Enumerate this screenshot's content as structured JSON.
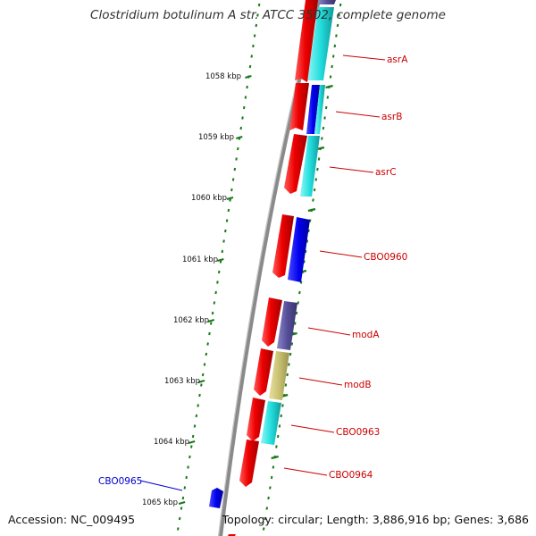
{
  "title": "Clostridium botulinum A str. ATCC 3502, complete genome",
  "accession": "Accession: NC_009495",
  "topology": "Topology: circular; Length: 3,886,916 bp; Genes: 3,686",
  "kbp_labels": [
    "1058 kbp",
    "1059 kbp",
    "1060 kbp",
    "1061 kbp",
    "1062 kbp",
    "1063 kbp",
    "1064 kbp",
    "1065 kbp"
  ],
  "gene_labels": [
    "asrA",
    "asrB",
    "asrC",
    "CBO0960",
    "modA",
    "modB",
    "CBO0963",
    "CBO0964",
    "CBO0965"
  ],
  "colors": {
    "backbone": "#8a8a8a",
    "gene_red": "#ee0000",
    "label_red": "#cc0000",
    "label_blue": "#0000cc",
    "tick_green": "#1a7a1a",
    "cyan": "#22dddd",
    "blue": "#0000ee",
    "slate": "#554f99",
    "khaki": "#c8c070"
  }
}
